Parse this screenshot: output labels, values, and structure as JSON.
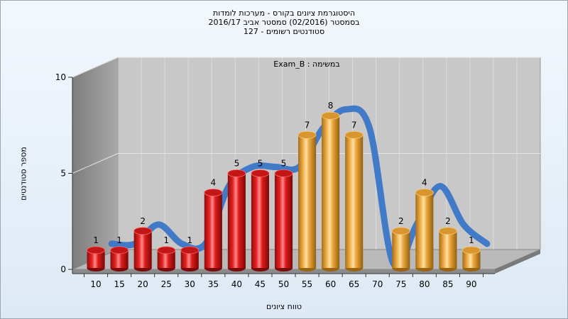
{
  "chart_data": {
    "type": "bar",
    "title_lines": [
      "היסטוגרמת ציונים בקורס - מערכות לומדות",
      "בסמסטר  (02/2016)  סמסטר אביב 2016/17",
      "סטודנטים רשומים - 127"
    ],
    "annotation": "Exam_B : במשימה",
    "xlabel": "טווח ציונים",
    "ylabel": "מספר סטודנטים",
    "ylim": [
      0,
      10
    ],
    "yticks": [
      0,
      5,
      10
    ],
    "grid": true,
    "legend": "none",
    "categories": [
      "10",
      "15",
      "20",
      "25",
      "30",
      "35",
      "40",
      "45",
      "50",
      "55",
      "60",
      "65",
      "70",
      "75",
      "80",
      "85",
      "90"
    ],
    "values": [
      1,
      1,
      2,
      1,
      1,
      4,
      5,
      5,
      5,
      7,
      8,
      7,
      0,
      2,
      4,
      2,
      1
    ],
    "colors": {
      "below_pass": "#e52222",
      "above_pass": "#f0b048",
      "curve": "#3a76c7",
      "curve_hidden": "#5e5e5e",
      "wall": "#8f8f8f",
      "back_wall": "#c8c8c8"
    }
  }
}
